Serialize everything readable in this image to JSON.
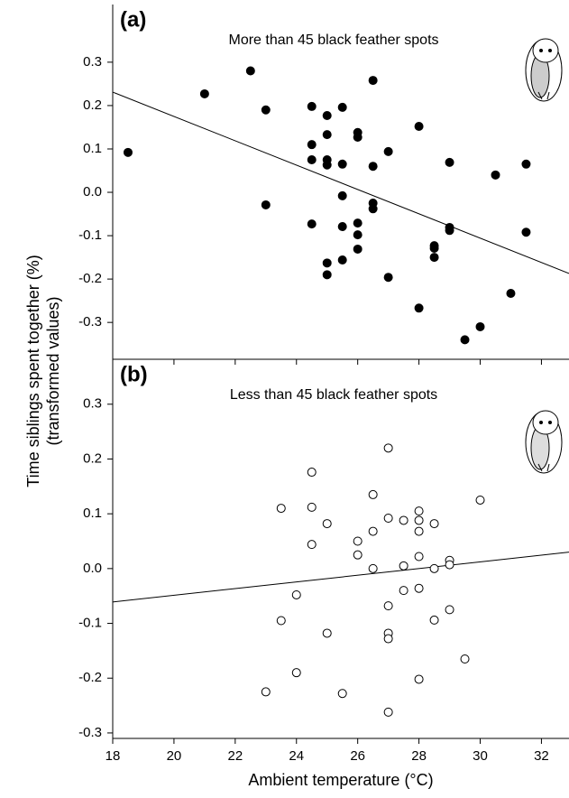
{
  "chart_data": [
    {
      "type": "scatter",
      "panel": "(a)",
      "title": "More than 45 black feather spots",
      "ylabel": [
        "Time siblings spent together (%)",
        "(transformed values)"
      ],
      "marker": "filled",
      "color": "#000000",
      "xlim": [
        18,
        32.9
      ],
      "ylim": [
        -0.385,
        0.433
      ],
      "yticks": [
        -0.3,
        -0.2,
        -0.1,
        {
          "value": 0,
          "label": "0.0"
        },
        0.1,
        0.2,
        0.3
      ],
      "x": [
        18.5,
        21,
        22.5,
        23,
        23,
        24.5,
        24.5,
        24.5,
        24.5,
        25,
        25,
        25,
        25,
        25,
        25,
        25.5,
        25.5,
        25.5,
        25.5,
        25.5,
        26,
        26,
        26,
        26,
        26,
        26.5,
        26.5,
        26.5,
        26.5,
        27,
        27,
        28,
        28,
        28.5,
        28.5,
        28.5,
        29,
        29,
        29,
        29.5,
        30,
        30.5,
        31,
        31.5,
        31.5
      ],
      "values": [
        0.092,
        0.227,
        0.28,
        0.19,
        -0.029,
        0.198,
        0.11,
        0.075,
        -0.073,
        0.177,
        0.133,
        0.075,
        0.063,
        -0.163,
        -0.19,
        0.196,
        0.065,
        -0.008,
        -0.079,
        -0.156,
        0.138,
        0.127,
        -0.071,
        -0.098,
        -0.131,
        0.258,
        0.06,
        -0.025,
        -0.038,
        0.094,
        -0.196,
        0.152,
        -0.267,
        -0.123,
        -0.129,
        -0.15,
        0.069,
        -0.081,
        -0.088,
        -0.34,
        -0.31,
        0.04,
        -0.233,
        0.065,
        -0.092
      ],
      "fit": {
        "x": [
          18,
          32.9
        ],
        "values": [
          0.231,
          -0.187
        ]
      }
    },
    {
      "type": "scatter",
      "panel": "(b)",
      "title": "Less than 45 black feather spots",
      "xlabel": "Ambient temperature (°C)",
      "marker": "open",
      "color": "#000000",
      "xlim": [
        18,
        32.9
      ],
      "ylim": [
        -0.31,
        0.382
      ],
      "xticks": [
        18,
        20,
        22,
        24,
        26,
        28,
        30,
        32
      ],
      "yticks": [
        -0.3,
        -0.2,
        -0.1,
        {
          "value": 0,
          "label": "0.0"
        },
        0.1,
        0.2,
        0.3
      ],
      "x": [
        23.5,
        23.5,
        23,
        24,
        24,
        24.5,
        24.5,
        24.5,
        25,
        25,
        25.5,
        26,
        26,
        26.5,
        26.5,
        26.5,
        27,
        27,
        27,
        27,
        27,
        27,
        27.5,
        27.5,
        27.5,
        28,
        28,
        28,
        28,
        28,
        28,
        28.5,
        28.5,
        28.5,
        29,
        29,
        29,
        29.5,
        30
      ],
      "values": [
        0.11,
        -0.095,
        -0.225,
        -0.048,
        -0.19,
        0.176,
        0.112,
        0.044,
        0.082,
        -0.118,
        -0.228,
        0.05,
        0.025,
        0.135,
        0.068,
        0.0,
        0.22,
        0.092,
        -0.068,
        -0.118,
        -0.128,
        -0.262,
        0.088,
        0.005,
        -0.04,
        0.105,
        0.088,
        0.068,
        0.022,
        -0.036,
        -0.202,
        0.082,
        0.0,
        -0.094,
        0.015,
        0.007,
        -0.075,
        -0.165,
        0.125
      ],
      "fit": {
        "x": [
          18,
          32.9
        ],
        "values": [
          -0.061,
          0.03
        ]
      }
    }
  ]
}
